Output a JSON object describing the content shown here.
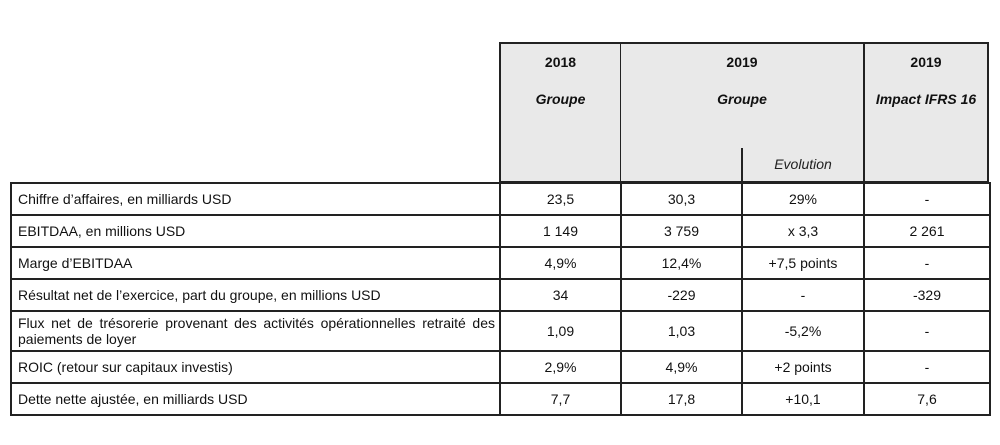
{
  "header": {
    "col_2018": {
      "year": "2018",
      "scope": "Groupe"
    },
    "col_2019": {
      "year": "2019",
      "scope": "Groupe",
      "evolution_label": "Evolution"
    },
    "col_ifrs": {
      "year": "2019",
      "scope": "Impact IFRS 16"
    }
  },
  "rows": [
    {
      "label": "Chiffre d’affaires, en milliards USD",
      "v2018": "23,5",
      "v2019": "30,3",
      "evolution": "29%",
      "ifrs16": "-"
    },
    {
      "label": "EBITDAA, en millions USD",
      "v2018": "1 149",
      "v2019": "3 759",
      "evolution": "x 3,3",
      "ifrs16": "2 261"
    },
    {
      "label": "Marge d’EBITDAA",
      "v2018": "4,9%",
      "v2019": "12,4%",
      "evolution": "+7,5 points",
      "ifrs16": "-"
    },
    {
      "label": "Résultat net de l’exercice, part du groupe, en millions USD",
      "v2018": "34",
      "v2019": "-229",
      "evolution": "-",
      "ifrs16": "-329"
    },
    {
      "label": "Flux net de trésorerie provenant des activités opérationnelles retraité des paiements de loyer",
      "v2018": "1,09",
      "v2019": "1,03",
      "evolution": "-5,2%",
      "ifrs16": "-"
    },
    {
      "label": "ROIC (retour sur capitaux investis)",
      "v2018": "2,9%",
      "v2019": "4,9%",
      "evolution": "+2 points",
      "ifrs16": "-"
    },
    {
      "label": "Dette nette ajustée, en milliards USD",
      "v2018": "7,7",
      "v2019": "17,8",
      "evolution": "+10,1",
      "ifrs16": "7,6"
    }
  ]
}
